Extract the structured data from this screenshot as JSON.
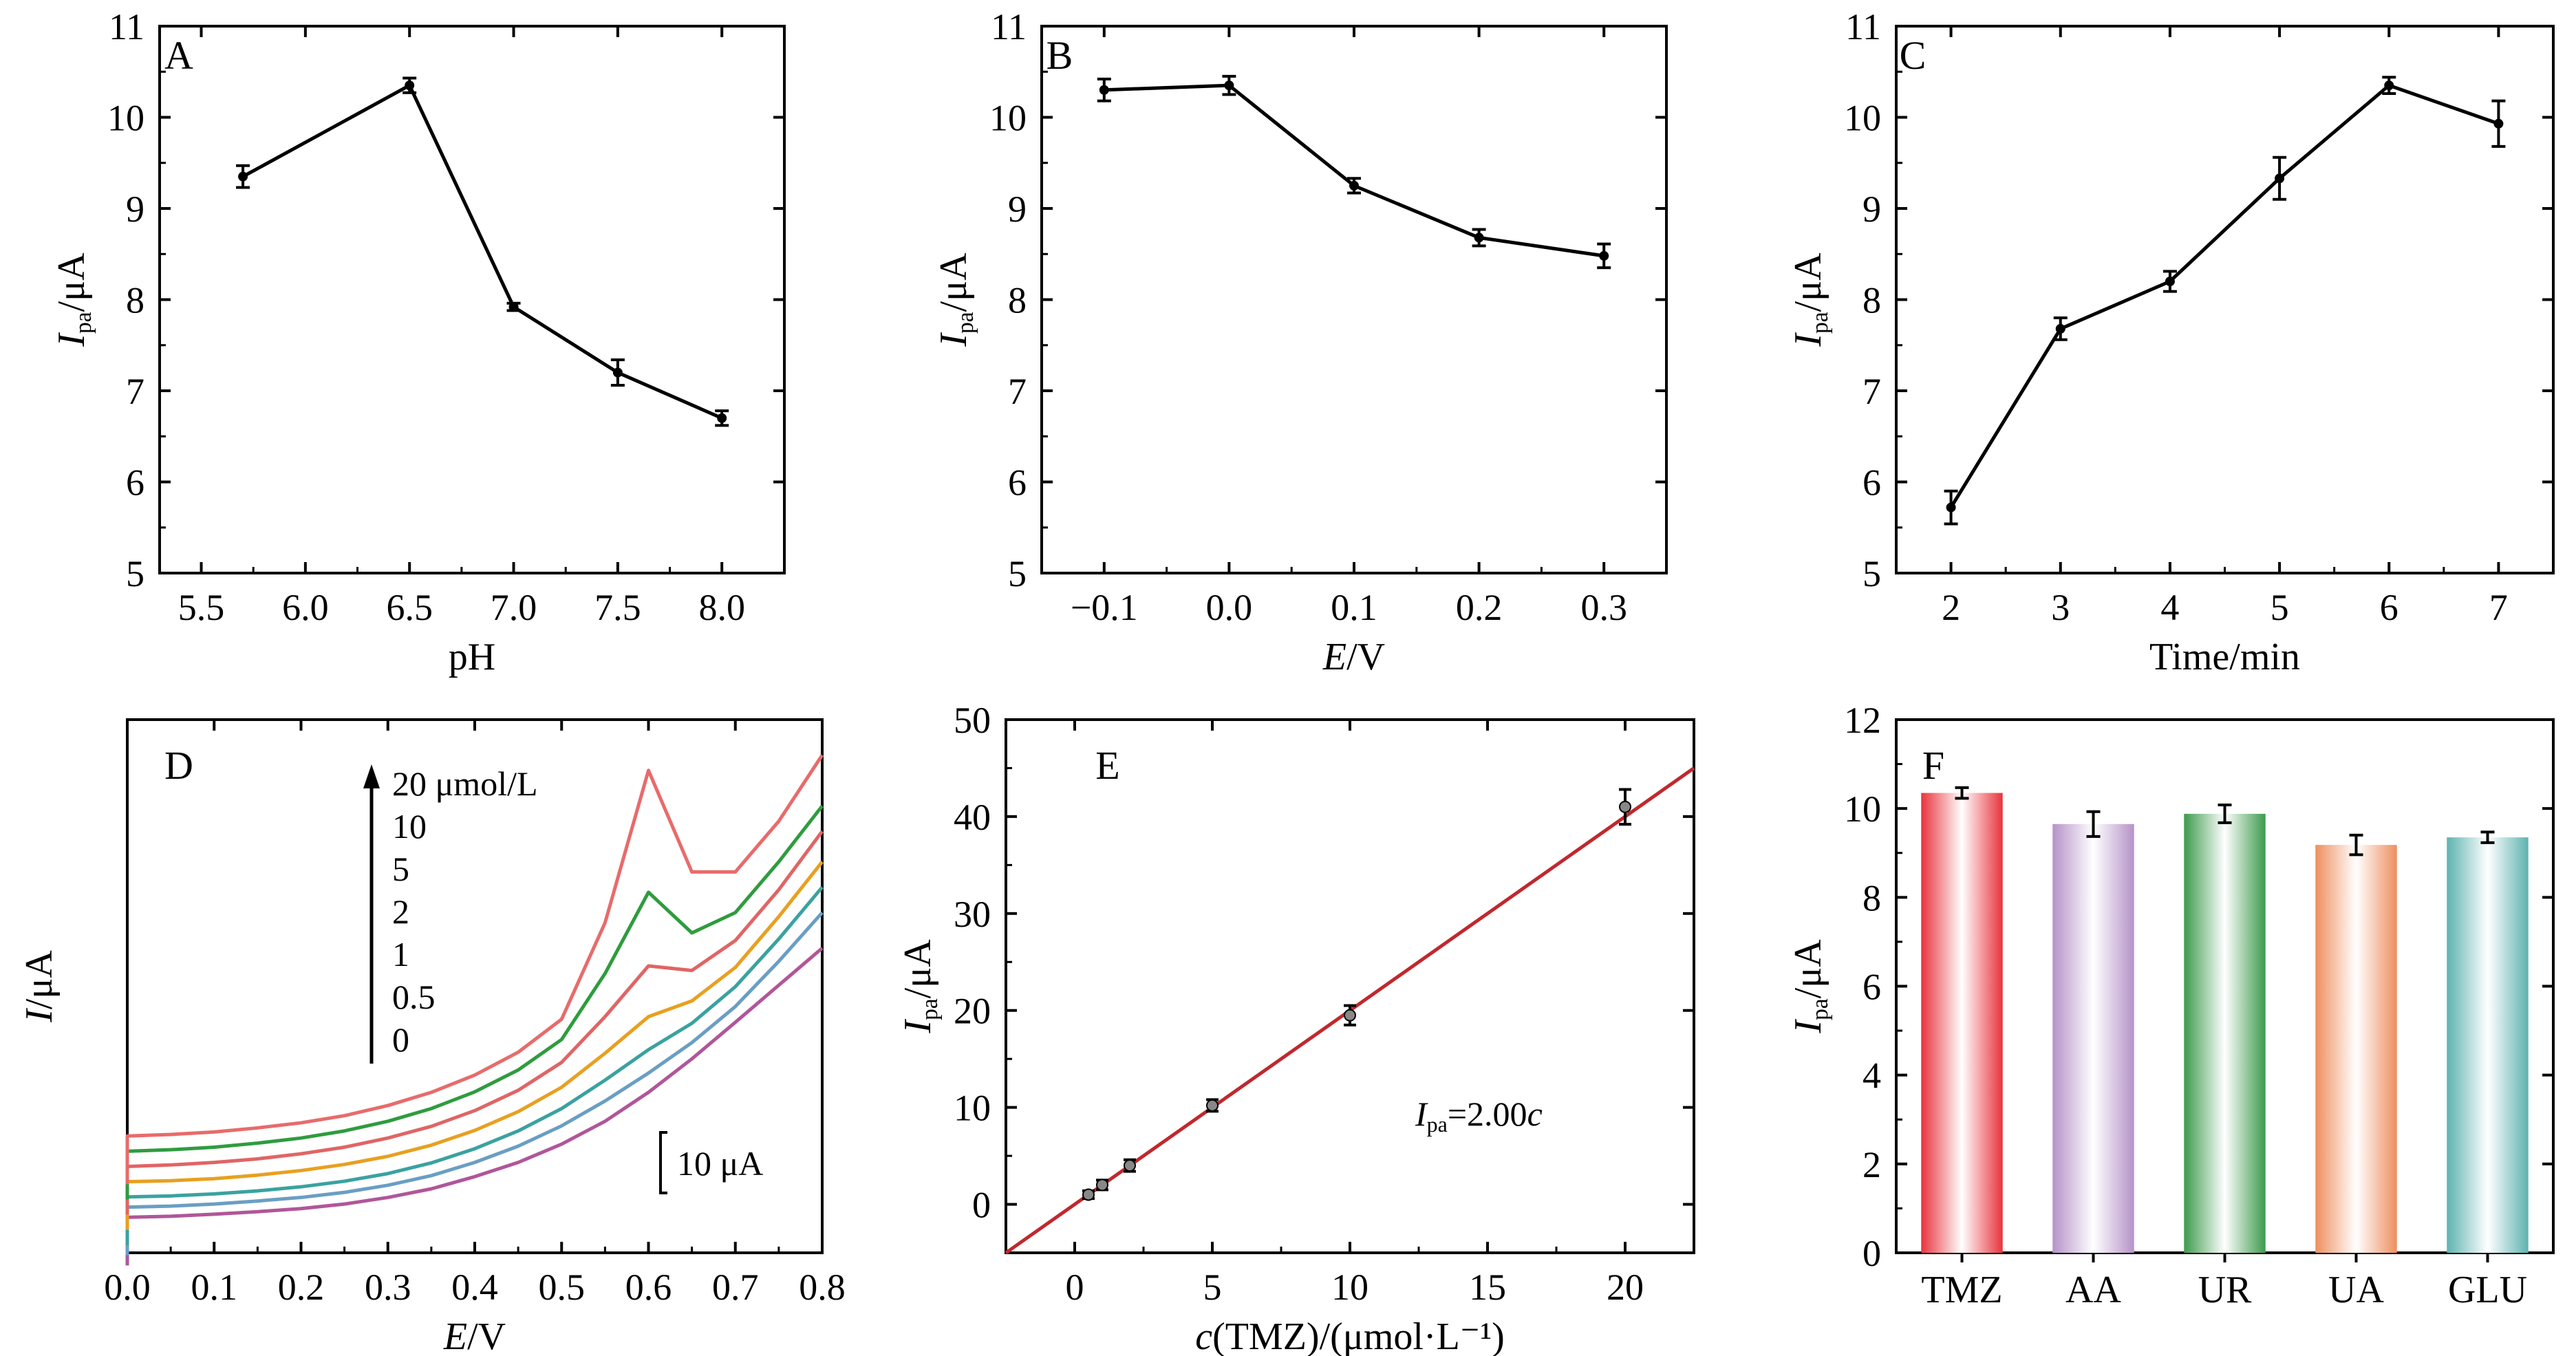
{
  "chart_data": [
    {
      "panel": "A",
      "type": "line",
      "xlabel": "pH",
      "ylabel": {
        "main": "I",
        "sub": "pa",
        "unit": "/μA"
      },
      "xlim": [
        5.3,
        8.3
      ],
      "ylim": [
        5,
        11
      ],
      "xticks": [
        5.5,
        6.0,
        6.5,
        7.0,
        7.5,
        8.0
      ],
      "xtick_labels": [
        "5.5",
        "6.0",
        "6.5",
        "7.0",
        "7.5",
        "8.0"
      ],
      "yticks": [
        5,
        6,
        7,
        8,
        9,
        10,
        11
      ],
      "ytick_labels": [
        "5",
        "6",
        "7",
        "8",
        "9",
        "10",
        "11"
      ],
      "series": [
        {
          "x": [
            5.7,
            6.5,
            7.0,
            7.5,
            8.0
          ],
          "y": [
            9.35,
            10.35,
            7.92,
            7.2,
            6.7
          ],
          "err": [
            0.12,
            0.08,
            0.04,
            0.14,
            0.08
          ]
        }
      ]
    },
    {
      "panel": "B",
      "type": "line",
      "xlabel": {
        "main": "E",
        "unit": "/V"
      },
      "ylabel": {
        "main": "I",
        "sub": "pa",
        "unit": "/μA"
      },
      "xlim": [
        -0.15,
        0.35
      ],
      "ylim": [
        5,
        11
      ],
      "xticks": [
        -0.1,
        0.0,
        0.1,
        0.2,
        0.3
      ],
      "xtick_labels": [
        "−0.1",
        "0.0",
        "0.1",
        "0.2",
        "0.3"
      ],
      "yticks": [
        5,
        6,
        7,
        8,
        9,
        10,
        11
      ],
      "ytick_labels": [
        "5",
        "6",
        "7",
        "8",
        "9",
        "10",
        "11"
      ],
      "series": [
        {
          "x": [
            -0.1,
            0.0,
            0.1,
            0.2,
            0.3
          ],
          "y": [
            10.3,
            10.35,
            9.25,
            8.68,
            8.48
          ],
          "err": [
            0.12,
            0.1,
            0.08,
            0.09,
            0.13
          ]
        }
      ]
    },
    {
      "panel": "C",
      "type": "line",
      "xlabel": "Time/min",
      "ylabel": {
        "main": "I",
        "sub": "pa",
        "unit": "/μA"
      },
      "xlim": [
        1.5,
        7.5
      ],
      "ylim": [
        5,
        11
      ],
      "xticks": [
        2,
        3,
        4,
        5,
        6,
        7
      ],
      "xtick_labels": [
        "2",
        "3",
        "4",
        "5",
        "6",
        "7"
      ],
      "yticks": [
        5,
        6,
        7,
        8,
        9,
        10,
        11
      ],
      "ytick_labels": [
        "5",
        "6",
        "7",
        "8",
        "9",
        "10",
        "11"
      ],
      "series": [
        {
          "x": [
            2,
            3,
            4,
            5,
            6,
            7
          ],
          "y": [
            5.72,
            7.68,
            8.2,
            9.33,
            10.35,
            9.93
          ],
          "err": [
            0.18,
            0.12,
            0.11,
            0.23,
            0.09,
            0.25
          ]
        }
      ]
    },
    {
      "panel": "D",
      "type": "line",
      "xlabel": {
        "main": "E",
        "unit": "/V"
      },
      "ylabel": {
        "main": "I",
        "unit": "/μA"
      },
      "xlim": [
        0.0,
        0.8
      ],
      "ylim": [
        -3,
        102
      ],
      "xticks": [
        0.0,
        0.1,
        0.2,
        0.3,
        0.4,
        0.5,
        0.6,
        0.7,
        0.8
      ],
      "xtick_labels": [
        "0.0",
        "0.1",
        "0.2",
        "0.3",
        "0.4",
        "0.5",
        "0.6",
        "0.7",
        "0.8"
      ],
      "legend_labels": [
        "20 μmol/L",
        "10",
        "5",
        "2",
        "1",
        "0.5",
        "0"
      ],
      "scale_bar": "10 μA",
      "series": [
        {
          "name": "0",
          "color": "#b0569a",
          "base": 4,
          "peak_height": 0,
          "slope": 26,
          "x": [
            0.0,
            0.05,
            0.1,
            0.15,
            0.2,
            0.25,
            0.3,
            0.35,
            0.4,
            0.45,
            0.5,
            0.55,
            0.6,
            0.65,
            0.7,
            0.75,
            0.8
          ],
          "y": [
            4,
            4.2,
            4.6,
            5.1,
            5.7,
            6.6,
            7.9,
            9.6,
            12,
            14.8,
            18.4,
            22.9,
            28.6,
            35.2,
            42.4,
            49.7,
            57
          ]
        },
        {
          "name": "0.5",
          "color": "#6a9ec4",
          "base": 6,
          "peak_height": 1,
          "slope": 28,
          "x": [
            0.0,
            0.05,
            0.1,
            0.15,
            0.2,
            0.25,
            0.3,
            0.35,
            0.4,
            0.45,
            0.5,
            0.55,
            0.6,
            0.65,
            0.7,
            0.75,
            0.8
          ],
          "y": [
            6,
            6.2,
            6.6,
            7.2,
            7.9,
            8.9,
            10.3,
            12.2,
            14.8,
            18,
            22,
            26.9,
            32.4,
            38.4,
            45.5,
            54.4,
            64
          ]
        },
        {
          "name": "1",
          "color": "#3aa2a0",
          "base": 8,
          "peak_height": 2,
          "slope": 30,
          "x": [
            0.0,
            0.05,
            0.1,
            0.15,
            0.2,
            0.25,
            0.3,
            0.35,
            0.4,
            0.45,
            0.5,
            0.55,
            0.6,
            0.65,
            0.7,
            0.75,
            0.8
          ],
          "y": [
            8,
            8.2,
            8.6,
            9.2,
            10,
            11.1,
            12.6,
            14.7,
            17.5,
            21,
            25.4,
            31,
            37,
            42.2,
            49.4,
            58.8,
            69
          ]
        },
        {
          "name": "2",
          "color": "#e8a020",
          "base": 11,
          "peak_height": 4,
          "slope": 31,
          "x": [
            0.0,
            0.05,
            0.1,
            0.15,
            0.2,
            0.25,
            0.3,
            0.35,
            0.4,
            0.45,
            0.5,
            0.55,
            0.6,
            0.65,
            0.7,
            0.75,
            0.8
          ],
          "y": [
            11,
            11.2,
            11.6,
            12.3,
            13.2,
            14.4,
            16,
            18.2,
            21.1,
            24.8,
            29.6,
            36.3,
            43.5,
            46.6,
            53.2,
            63.2,
            74
          ]
        },
        {
          "name": "5",
          "color": "#e06565",
          "base": 14,
          "peak_height": 8,
          "slope": 32,
          "x": [
            0.0,
            0.05,
            0.1,
            0.15,
            0.2,
            0.25,
            0.3,
            0.35,
            0.4,
            0.45,
            0.5,
            0.55,
            0.6,
            0.65,
            0.7,
            0.75,
            0.8
          ],
          "y": [
            14,
            14.3,
            14.8,
            15.5,
            16.5,
            17.8,
            19.6,
            21.9,
            25,
            29,
            34.5,
            43.5,
            53.5,
            52.6,
            58.5,
            68.5,
            80
          ]
        },
        {
          "name": "10",
          "color": "#2e9c3e",
          "base": 17,
          "peak_height": 17,
          "slope": 33,
          "x": [
            0.0,
            0.05,
            0.1,
            0.15,
            0.2,
            0.25,
            0.3,
            0.35,
            0.4,
            0.45,
            0.5,
            0.55,
            0.6,
            0.65,
            0.7,
            0.75,
            0.8
          ],
          "y": [
            17,
            17.3,
            17.8,
            18.6,
            19.6,
            21,
            22.9,
            25.4,
            28.7,
            33,
            39,
            52,
            68,
            60,
            64,
            74,
            85
          ]
        },
        {
          "name": "20",
          "color": "#e86b6b",
          "base": 20,
          "peak_height": 37,
          "slope": 34,
          "x": [
            0.0,
            0.05,
            0.1,
            0.15,
            0.2,
            0.25,
            0.3,
            0.35,
            0.4,
            0.45,
            0.5,
            0.55,
            0.6,
            0.65,
            0.7,
            0.75,
            0.8
          ],
          "y": [
            20,
            20.3,
            20.8,
            21.6,
            22.6,
            24,
            26,
            28.6,
            32,
            36.5,
            43,
            62,
            92,
            72,
            72,
            82,
            95
          ]
        }
      ]
    },
    {
      "panel": "E",
      "type": "scatter",
      "xlabel": {
        "main": "c",
        "unit": "(TMZ)/(μmol·L⁻¹)"
      },
      "ylabel": {
        "main": "I",
        "sub": "pa",
        "unit": "/μA"
      },
      "xlim": [
        -2.5,
        22.5
      ],
      "ylim": [
        -5,
        50
      ],
      "xticks": [
        0,
        5,
        10,
        15,
        20
      ],
      "xtick_labels": [
        "0",
        "5",
        "10",
        "15",
        "20"
      ],
      "yticks": [
        0,
        10,
        20,
        30,
        40,
        50
      ],
      "ytick_labels": [
        "0",
        "10",
        "20",
        "30",
        "40",
        "50"
      ],
      "series": [
        {
          "x": [
            0.5,
            1,
            2,
            5,
            10,
            20
          ],
          "y": [
            1,
            2,
            4,
            10.2,
            19.5,
            41
          ],
          "err": [
            0.4,
            0.5,
            0.6,
            0.6,
            1.0,
            1.8
          ]
        }
      ],
      "fit": {
        "slope": 2.0,
        "intercept": 0,
        "color": "#c0282d"
      },
      "equation": {
        "main": "I",
        "sub": "pa",
        "rest": "=2.00",
        "var": "c"
      }
    },
    {
      "panel": "F",
      "type": "bar",
      "ylabel": {
        "main": "I",
        "sub": "pa",
        "unit": "/μA"
      },
      "categories": [
        "TMZ",
        "AA",
        "UR",
        "UA",
        "GLU"
      ],
      "values": [
        10.35,
        9.65,
        9.88,
        9.18,
        9.35
      ],
      "err": [
        0.12,
        0.28,
        0.2,
        0.22,
        0.12
      ],
      "colors": [
        "#e8333c",
        "#b592c8",
        "#3d9a4c",
        "#ee8f5e",
        "#5db3b0"
      ],
      "ylim": [
        0,
        12
      ],
      "yticks": [
        0,
        2,
        4,
        6,
        8,
        10,
        12
      ],
      "ytick_labels": [
        "0",
        "2",
        "4",
        "6",
        "8",
        "10",
        "12"
      ]
    }
  ]
}
